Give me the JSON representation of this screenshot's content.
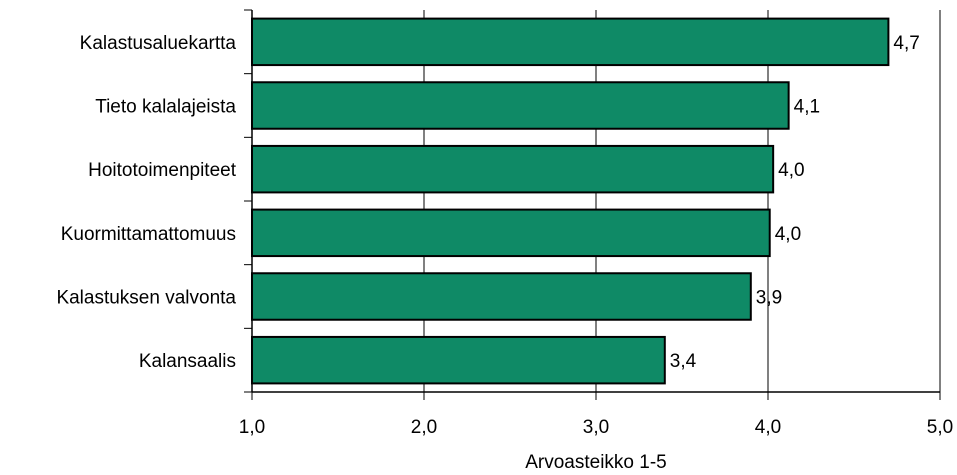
{
  "chart_data": {
    "type": "bar",
    "orientation": "horizontal",
    "categories": [
      "Kalastusaluekartta",
      "Tieto kalalajeista",
      "Hoitotoimenpiteet",
      "Kuormittamattomuus",
      "Kalastuksen valvonta",
      "Kalansaalis"
    ],
    "values": [
      4.7,
      4.12,
      4.03,
      4.01,
      3.9,
      3.4
    ],
    "data_labels": [
      "4,7",
      "4,1",
      "4,0",
      "4,0",
      "3,9",
      "3,4"
    ],
    "xlabel": "Arvoasteikko 1-5",
    "xlim": [
      1,
      5
    ],
    "xticks": [
      1,
      2,
      3,
      4,
      5
    ],
    "xtick_labels": [
      "1,0",
      "2,0",
      "3,0",
      "4,0",
      "5,0"
    ],
    "grid": "vertical",
    "legend": "none",
    "bar_color": "#0f8a66",
    "bar_border_color": "#000000"
  }
}
